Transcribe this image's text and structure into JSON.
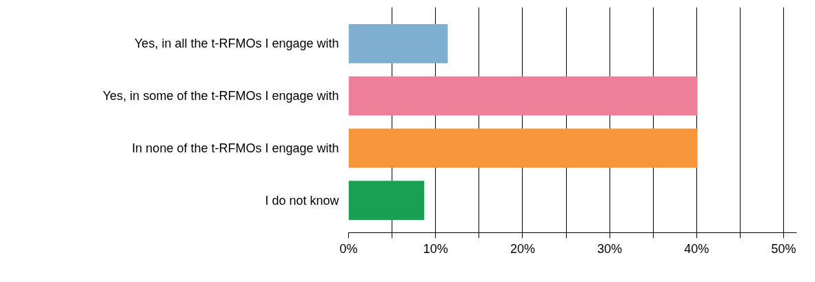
{
  "chart_data": {
    "type": "bar",
    "orientation": "horizontal",
    "categories": [
      "Yes, in all the t-RFMOs I engage with",
      "Yes, in some of the t-RFMOs I engage with",
      "In none of the t-RFMOs I engage with",
      "I do not know"
    ],
    "values": [
      11.4,
      40.1,
      40.1,
      8.7
    ],
    "colors": [
      "#7fafd0",
      "#ee7f98",
      "#f7963a",
      "#19a052"
    ],
    "xlim": [
      0,
      51.5
    ],
    "xticks": [
      {
        "value": 0,
        "label": "0%"
      },
      {
        "value": 5,
        "label": null
      },
      {
        "value": 10,
        "label": "10%"
      },
      {
        "value": 15,
        "label": null
      },
      {
        "value": 20,
        "label": "20%"
      },
      {
        "value": 25,
        "label": null
      },
      {
        "value": 30,
        "label": "30%"
      },
      {
        "value": 35,
        "label": null
      },
      {
        "value": 40,
        "label": "40%"
      },
      {
        "value": 45,
        "label": null
      },
      {
        "value": 50,
        "label": "50%"
      }
    ],
    "grid": "x"
  }
}
